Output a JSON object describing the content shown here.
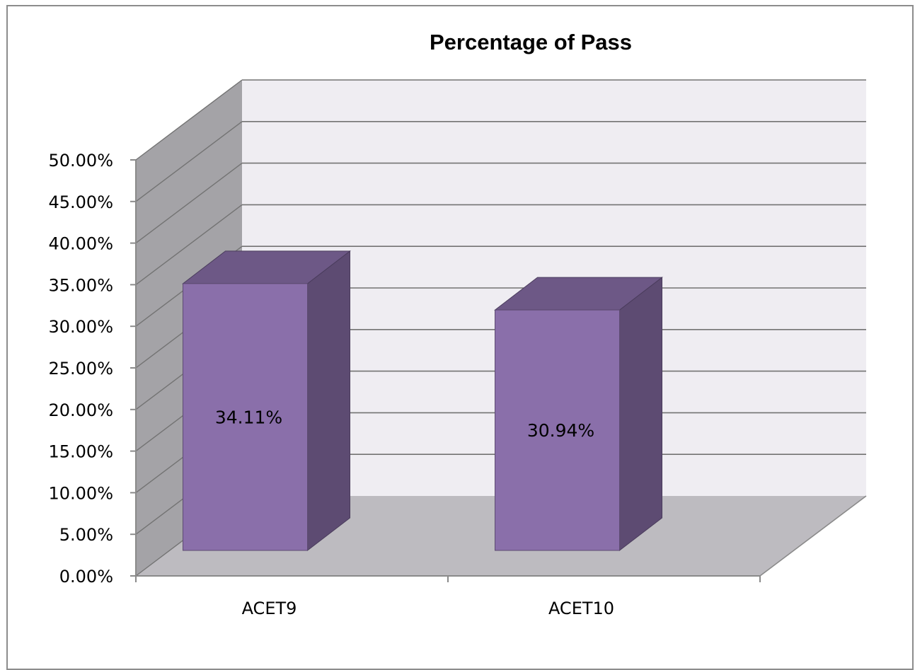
{
  "chart_data": {
    "type": "bar",
    "title": "Percentage of Pass",
    "categories": [
      "ACET9",
      "ACET10"
    ],
    "values": [
      34.11,
      30.94
    ],
    "data_labels": [
      "34.11%",
      "30.94%"
    ],
    "xlabel": "",
    "ylabel": "",
    "ylim": [
      0,
      50
    ],
    "y_ticks": [
      "0.00%",
      "5.00%",
      "10.00%",
      "15.00%",
      "20.00%",
      "25.00%",
      "30.00%",
      "35.00%",
      "40.00%",
      "45.00%",
      "50.00%"
    ],
    "grid": true,
    "legend": "none",
    "style": "3d-column",
    "colors": {
      "bar_front": "#8a6faa",
      "bar_side": "#5d4b72",
      "bar_top": "#6d5886",
      "back_wall": "#efedf2",
      "side_wall": "#a4a3a7",
      "floor": "#bdbbc0",
      "gridline": "#737373"
    }
  }
}
